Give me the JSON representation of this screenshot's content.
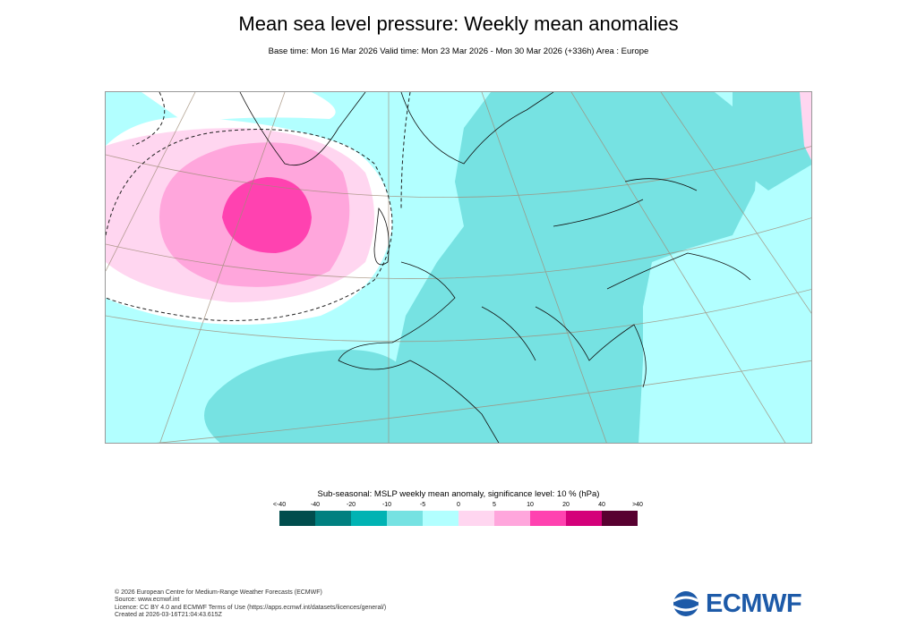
{
  "title": "Mean sea level pressure: Weekly mean anomalies",
  "subtitle": "Base time: Mon 16 Mar 2026 Valid time: Mon 23 Mar 2026 - Mon 30 Mar 2026 (+336h) Area : Europe",
  "map": {
    "area": "Europe",
    "background_color": "#b2ffff"
  },
  "legend": {
    "title": "Sub-seasonal: MSLP weekly mean anomaly, significance level: 10 % (hPa)",
    "ticks": [
      "<-40",
      "-40",
      "-20",
      "-10",
      "-5",
      "0",
      "5",
      "10",
      "20",
      "40",
      ">40"
    ],
    "colors": [
      "#004d4d",
      "#008080",
      "#00b3b3",
      "#76e2e2",
      "#b2ffff",
      "#ffd6f0",
      "#ffa6dc",
      "#ff42b0",
      "#d4007a",
      "#580030"
    ]
  },
  "footer": {
    "line1": "© 2026 European Centre for Medium-Range Weather Forecasts (ECMWF)",
    "line2": "Source: www.ecmwf.int",
    "line3": "Licence: CC BY 4.0 and ECMWF Terms of Use (https://apps.ecmwf.int/datasets/licences/general/)",
    "line4": "Created at 2026-03-16T21:04:43.615Z"
  },
  "logo": {
    "text": "ECMWF",
    "color": "#1d5aa8"
  }
}
